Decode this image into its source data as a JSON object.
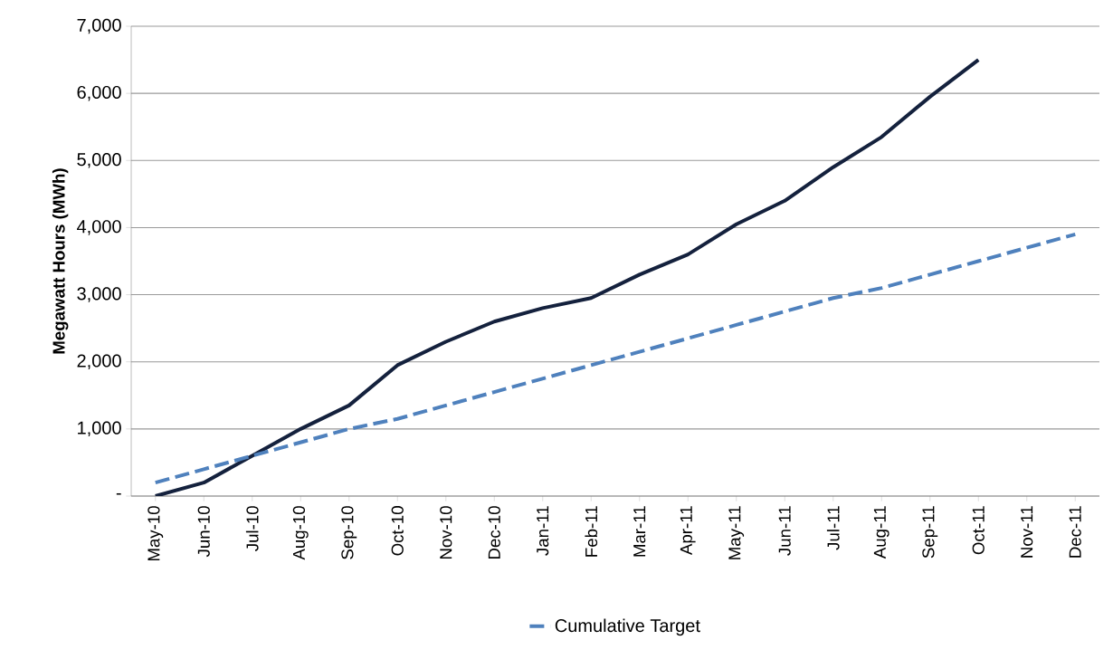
{
  "chart_data": {
    "type": "line",
    "ylabel": "Megawatt Hours (MWh)",
    "categories": [
      "May-10",
      "Jun-10",
      "Jul-10",
      "Aug-10",
      "Sep-10",
      "Oct-10",
      "Nov-10",
      "Dec-10",
      "Jan-11",
      "Feb-11",
      "Mar-11",
      "Apr-11",
      "May-11",
      "Jun-11",
      "Jul-11",
      "Aug-11",
      "Sep-11",
      "Oct-11",
      "Nov-11",
      "Dec-11"
    ],
    "series": [
      {
        "color": "#14213d",
        "line_style": "solid",
        "values": [
          0,
          200,
          600,
          1000,
          1350,
          1950,
          2300,
          2600,
          2800,
          2950,
          3300,
          3600,
          4050,
          4400,
          4900,
          5350,
          5950,
          6500,
          null,
          null
        ]
      },
      {
        "name": "Cumulative Target",
        "color": "#4f81bd",
        "line_style": "dashed",
        "values": [
          200,
          400,
          600,
          800,
          1000,
          1150,
          1350,
          1550,
          1750,
          1950,
          2150,
          2350,
          2550,
          2750,
          2950,
          3100,
          3300,
          3500,
          3700,
          3900
        ]
      }
    ],
    "ylim": [
      0,
      7000
    ],
    "yticks": [
      {
        "value": 0,
        "label": "-"
      },
      {
        "value": 1000,
        "label": "1,000"
      },
      {
        "value": 2000,
        "label": "2,000"
      },
      {
        "value": 3000,
        "label": "3,000"
      },
      {
        "value": 4000,
        "label": "4,000"
      },
      {
        "value": 5000,
        "label": "5,000"
      },
      {
        "value": 6000,
        "label": "6,000"
      },
      {
        "value": 7000,
        "label": "7,000"
      }
    ],
    "grid": "y",
    "legend": "bottom"
  }
}
